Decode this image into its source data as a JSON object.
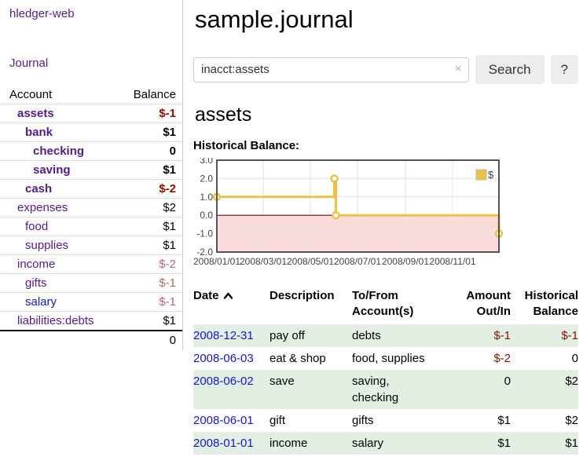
{
  "colors": {
    "link_purple": "#551a8b",
    "link_blue": "#1515d0",
    "negative_strong": "#8b0f00",
    "negative_muted": "#b36a6a",
    "row_highlight": "#e4efe4",
    "button_bg": "#ededed",
    "chart_line": "#edc240",
    "chart_zero_line": "#800000",
    "chart_negative_fill": "#fbdcdc",
    "chart_border": "#545454",
    "chart_grid": "#e3e3e3"
  },
  "sidebar": {
    "app_title": "hledger-web",
    "nav": {
      "journal_label": "Journal"
    },
    "accounts_table": {
      "account_header": "Account",
      "balance_header": "Balance",
      "rows": [
        {
          "account": "assets",
          "balance": "$-1",
          "depth": 1,
          "bold": true,
          "balance_style": "negative-strong",
          "link_color": "purple"
        },
        {
          "account": "bank",
          "balance": "$1",
          "depth": 2,
          "bold": true,
          "balance_style": "normal",
          "link_color": "purple"
        },
        {
          "account": "checking",
          "balance": "0",
          "depth": 3,
          "bold": true,
          "balance_style": "normal",
          "link_color": "purple"
        },
        {
          "account": "saving",
          "balance": "$1",
          "depth": 3,
          "bold": true,
          "balance_style": "normal",
          "link_color": "purple"
        },
        {
          "account": "cash",
          "balance": "$-2",
          "depth": 2,
          "bold": true,
          "balance_style": "negative-strong",
          "link_color": "purple"
        },
        {
          "account": "expenses",
          "balance": "$2",
          "depth": 1,
          "bold": false,
          "balance_style": "normal",
          "link_color": "purple"
        },
        {
          "account": "food",
          "balance": "$1",
          "depth": 2,
          "bold": false,
          "balance_style": "normal",
          "link_color": "purple"
        },
        {
          "account": "supplies",
          "balance": "$1",
          "depth": 2,
          "bold": false,
          "balance_style": "normal",
          "link_color": "purple"
        },
        {
          "account": "income",
          "balance": "$-2",
          "depth": 1,
          "bold": false,
          "balance_style": "negative-muted",
          "link_color": "purple"
        },
        {
          "account": "gifts",
          "balance": "$-1",
          "depth": 2,
          "bold": false,
          "balance_style": "negative-muted",
          "link_color": "purple"
        },
        {
          "account": "salary",
          "balance": "$-1",
          "depth": 2,
          "bold": false,
          "balance_style": "negative-muted",
          "link_color": "blue"
        },
        {
          "account": "liabilities:debts",
          "balance": "$1",
          "depth": 1,
          "bold": false,
          "balance_style": "normal",
          "link_color": "purple"
        }
      ],
      "total": "0"
    }
  },
  "main": {
    "journal_title": "sample.journal",
    "search": {
      "value": "inacct:assets",
      "clear_icon": "×",
      "search_button_label": "Search",
      "help_button_label": "?"
    },
    "account_heading": "assets",
    "chart_heading": "Historical Balance:",
    "register": {
      "headers": {
        "date": "Date",
        "description": "Description",
        "accounts": "To/From\nAccount(s)",
        "amount": "Amount\nOut/In",
        "balance": "Historical\nBalance"
      },
      "sort": "ascending",
      "rows": [
        {
          "date": "2008-12-31",
          "description": "pay off",
          "accounts": "debts",
          "amount": "$-1",
          "balance": "$-1"
        },
        {
          "date": "2008-06-03",
          "description": "eat & shop",
          "accounts": "food, supplies",
          "amount": "$-2",
          "balance": "0"
        },
        {
          "date": "2008-06-02",
          "description": "save",
          "accounts": "saving, checking",
          "amount": "0",
          "balance": "$2"
        },
        {
          "date": "2008-06-01",
          "description": "gift",
          "accounts": "gifts",
          "amount": "$1",
          "balance": "$2"
        },
        {
          "date": "2008-01-01",
          "description": "income",
          "accounts": "salary",
          "amount": "$1",
          "balance": "$1"
        }
      ]
    }
  },
  "chart_data": {
    "type": "line",
    "title": "Historical Balance",
    "step": true,
    "series": [
      {
        "name": "$",
        "points": [
          [
            "2008-01-01",
            1.0
          ],
          [
            "2008-06-01",
            2.0
          ],
          [
            "2008-06-03",
            0.0
          ],
          [
            "2008-12-31",
            -1.0
          ]
        ],
        "color": "#edc240"
      }
    ],
    "x_range": [
      "2008-01-01",
      "2008-12-31"
    ],
    "x_ticks": [
      "2008/01/01",
      "2008/03/01",
      "2008/05/01",
      "2008/07/01",
      "2008/09/01",
      "2008/11/01"
    ],
    "y_ticks": [
      "3.0",
      "2.0",
      "1.0",
      "0.0",
      "-1.0",
      "-2.0"
    ],
    "ylim": [
      -2,
      3
    ],
    "grid": true,
    "legend": {
      "label": "$",
      "position": "top-right"
    },
    "zero_line_color": "#800000",
    "negative_fill": "#fbdcdc"
  }
}
